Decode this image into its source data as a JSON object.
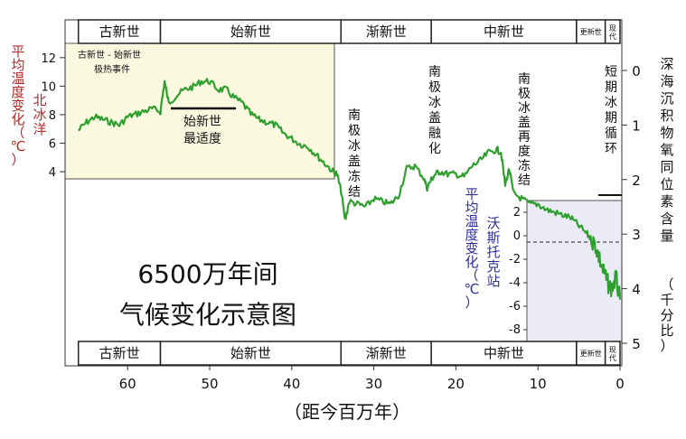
{
  "chart_data": {
    "type": "line",
    "title_lines": [
      "6500万年间",
      "气候变化示意图"
    ],
    "xlabel": "（距今百万年）",
    "x_ticks": [
      "60",
      "50",
      "40",
      "30",
      "20",
      "10",
      "0"
    ],
    "xlim": [
      67,
      0
    ],
    "right_axis": {
      "label_lines": [
        "深海沉积物氧同位素含量",
        "（千分比）"
      ],
      "ticks": [
        "0",
        "1",
        "2",
        "3",
        "4",
        "5"
      ],
      "ylim": [
        0,
        5
      ]
    },
    "arctic_inset": {
      "label_lines": [
        "平均温度变化（℃）",
        "北冰洋"
      ],
      "ticks": [
        "12",
        "10",
        "8",
        "6",
        "4"
      ],
      "ylim": [
        3.5,
        13
      ],
      "xlim": [
        67,
        34
      ]
    },
    "vostok_inset": {
      "label_lines": [
        "平均温度变化（℃）",
        "沃斯托克站"
      ],
      "ticks": [
        "2",
        "0",
        "-2",
        "-4",
        "-6",
        "-8"
      ],
      "ylim": [
        -9,
        3
      ],
      "xlim": [
        11.5,
        0
      ]
    },
    "epochs": [
      {
        "name": "古新世",
        "start": 66,
        "end": 56
      },
      {
        "name": "始新世",
        "start": 56,
        "end": 34
      },
      {
        "name": "渐新世",
        "start": 34,
        "end": 23
      },
      {
        "name": "中新世",
        "start": 23,
        "end": 5.3
      },
      {
        "name": "更新世",
        "start": 5.3,
        "end": 1.8
      },
      {
        "name": "现代",
        "start": 1.8,
        "end": 0
      }
    ],
    "annotations": [
      {
        "lines": [
          "古新世 - 始新世",
          "极热事件"
        ]
      },
      {
        "lines": [
          "始新世",
          "最适度"
        ],
        "x_range": [
          55,
          47
        ]
      },
      {
        "lines": [
          "南极冰盖冻结"
        ],
        "x": 33
      },
      {
        "lines": [
          "南极冰盖融化"
        ],
        "x": 24
      },
      {
        "lines": [
          "南极冰盖再度冻结"
        ],
        "x": 13.5
      },
      {
        "lines": [
          "短期冰期循环"
        ],
        "x": 2
      }
    ],
    "series": [
      {
        "color": "#2fa02f",
        "x": [
          66,
          65,
          64,
          63,
          62,
          61,
          60,
          59,
          58,
          57,
          56,
          55.5,
          55,
          54,
          53,
          52,
          51,
          50,
          49,
          48,
          47,
          46,
          45,
          44,
          43,
          42,
          41,
          40,
          39,
          38,
          37,
          36,
          35,
          34.5,
          34,
          33.5,
          33,
          32,
          31,
          30,
          29,
          28,
          27,
          26,
          25,
          24,
          23.5,
          23,
          22.5,
          22,
          21,
          20,
          19,
          18,
          17,
          16,
          15,
          14.5,
          14,
          13.5,
          13,
          12,
          11,
          10,
          9,
          8,
          7,
          6,
          5,
          4,
          3.5,
          3,
          2.5,
          2,
          1.5,
          1,
          0.5,
          0
        ],
        "y": [
          1.1,
          0.95,
          0.85,
          0.9,
          0.95,
          1.0,
          0.85,
          0.8,
          0.75,
          0.7,
          0.75,
          0.2,
          0.6,
          0.45,
          0.35,
          0.3,
          0.2,
          0.2,
          0.35,
          0.35,
          0.5,
          0.6,
          0.8,
          0.9,
          0.95,
          1.0,
          1.15,
          1.25,
          1.35,
          1.4,
          1.55,
          1.7,
          1.85,
          1.9,
          2.2,
          2.75,
          2.4,
          2.45,
          2.5,
          2.35,
          2.4,
          2.45,
          2.3,
          1.8,
          1.75,
          1.95,
          2.15,
          2.0,
          1.9,
          1.85,
          1.9,
          1.9,
          1.95,
          1.75,
          1.65,
          1.5,
          1.45,
          1.5,
          2.1,
          1.8,
          2.25,
          2.35,
          2.45,
          2.45,
          2.55,
          2.6,
          2.65,
          2.7,
          2.85,
          3.0,
          3.1,
          3.2,
          3.45,
          3.7,
          3.9,
          4.0,
          3.8,
          4.2
        ]
      }
    ]
  }
}
